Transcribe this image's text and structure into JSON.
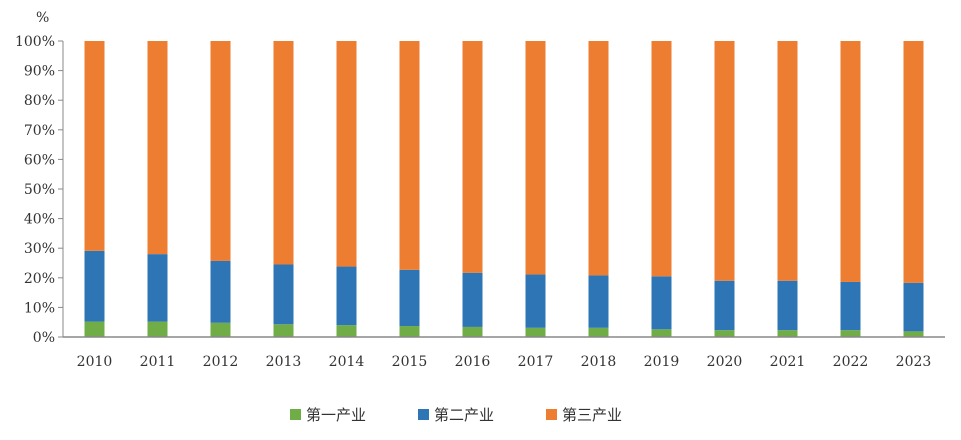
{
  "chart_data": {
    "type": "bar",
    "stacked": true,
    "percent": true,
    "title": "",
    "xlabel": "",
    "ylabel": "%",
    "ylim": [
      0,
      100
    ],
    "yticks": [
      "0%",
      "10%",
      "20%",
      "30%",
      "40%",
      "50%",
      "60%",
      "70%",
      "80%",
      "90%",
      "100%"
    ],
    "categories": [
      "2010",
      "2011",
      "2012",
      "2013",
      "2014",
      "2015",
      "2016",
      "2017",
      "2018",
      "2019",
      "2020",
      "2021",
      "2022",
      "2023"
    ],
    "series": [
      {
        "name": "第一产业",
        "color": "#70ad47",
        "values": [
          5.2,
          5.2,
          4.8,
          4.3,
          4.0,
          3.7,
          3.4,
          3.1,
          3.1,
          2.6,
          2.3,
          2.3,
          2.3,
          1.9
        ]
      },
      {
        "name": "第二产业",
        "color": "#2e75b6",
        "values": [
          23.9,
          22.8,
          20.9,
          20.2,
          19.8,
          19.0,
          18.3,
          18.0,
          17.7,
          17.9,
          16.7,
          16.7,
          16.3,
          16.4
        ]
      },
      {
        "name": "第三产业",
        "color": "#ed7d31",
        "values": [
          70.9,
          72.0,
          74.3,
          75.5,
          76.2,
          77.3,
          78.3,
          78.9,
          79.2,
          79.5,
          81.0,
          81.0,
          81.4,
          81.7
        ]
      }
    ],
    "legend": "bottom",
    "grid": false
  }
}
